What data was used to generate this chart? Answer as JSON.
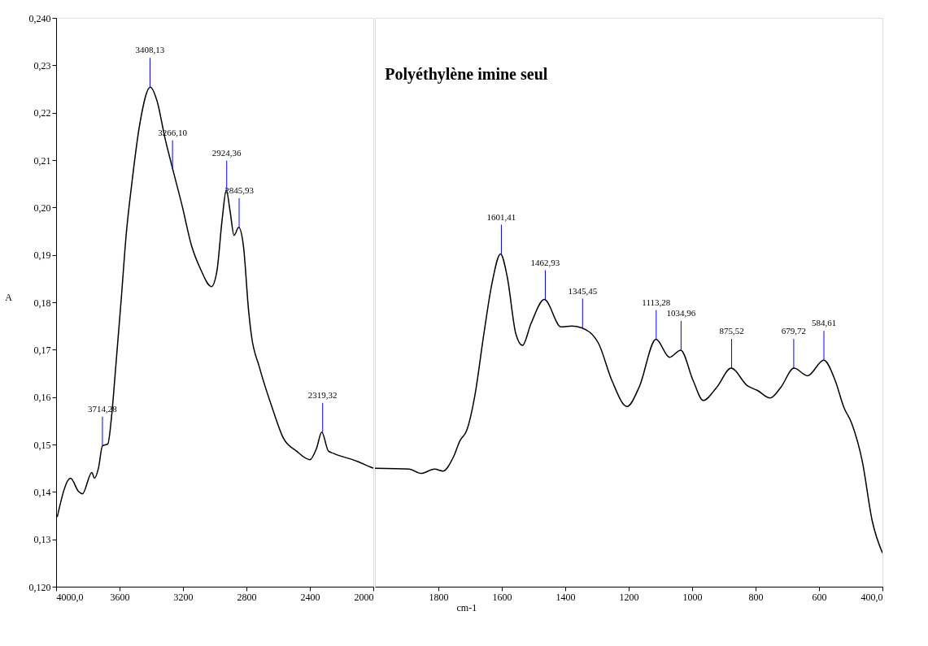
{
  "chart_data": [
    {
      "type": "line",
      "ylabel": "A",
      "xlim": [
        4000,
        2000
      ],
      "xticks": [
        {
          "value": 4000,
          "label": "4000,0"
        },
        3600,
        3200,
        2800,
        2400,
        2000
      ],
      "ylim": [
        0.12,
        0.24
      ],
      "yticks": [
        {
          "value": 0.12,
          "label": "0,120"
        },
        {
          "value": 0.13,
          "label": "0,13"
        },
        {
          "value": 0.14,
          "label": "0,14"
        },
        {
          "value": 0.15,
          "label": "0,15"
        },
        {
          "value": 0.16,
          "label": "0,16"
        },
        {
          "value": 0.17,
          "label": "0,17"
        },
        {
          "value": 0.18,
          "label": "0,18"
        },
        {
          "value": 0.19,
          "label": "0,19"
        },
        {
          "value": 0.2,
          "label": "0,20"
        },
        {
          "value": 0.21,
          "label": "0,21"
        },
        {
          "value": 0.22,
          "label": "0,22"
        },
        {
          "value": 0.23,
          "label": "0,23"
        },
        {
          "value": 0.24,
          "label": "0,240"
        }
      ],
      "x": [
        3993,
        3909,
        3859,
        3834,
        3775,
        3758,
        3733,
        3708,
        3674,
        3649,
        3624,
        3591,
        3557,
        3524,
        3473,
        3406,
        3364,
        3314,
        3264,
        3205,
        3146,
        3088,
        3021,
        2987,
        2953,
        2927,
        2903,
        2878,
        2849,
        2819,
        2786,
        2769,
        2719,
        2635,
        2568,
        2484,
        2400,
        2358,
        2325,
        2283,
        2249,
        2098,
        2015,
        2000
      ],
      "series": [
        {
          "color": "#000000",
          "values": [
            0.1347,
            0.1429,
            0.1401,
            0.1396,
            0.1441,
            0.1429,
            0.145,
            0.1497,
            0.1501,
            0.1564,
            0.1664,
            0.18,
            0.1947,
            0.2047,
            0.2175,
            0.2254,
            0.2225,
            0.2147,
            0.208,
            0.2003,
            0.1919,
            0.1869,
            0.1833,
            0.1864,
            0.1975,
            0.2037,
            0.1992,
            0.1941,
            0.1958,
            0.1919,
            0.1781,
            0.1731,
            0.1664,
            0.1575,
            0.1514,
            0.1486,
            0.1468,
            0.1492,
            0.1526,
            0.1486,
            0.1481,
            0.1464,
            0.1452,
            0.145
          ]
        }
      ],
      "annotations": [
        {
          "text": "3714,28",
          "x": 3708,
          "y": 0.1497
        },
        {
          "text": "3408,13",
          "x": 3408.13,
          "y": 0.2254
        },
        {
          "text": "3266,10",
          "x": 3266.1,
          "y": 0.208
        },
        {
          "text": "2924,36",
          "x": 2924.36,
          "y": 0.2037
        },
        {
          "text": "2845,93",
          "x": 2845.93,
          "y": 0.1958
        },
        {
          "text": "2319,32",
          "x": 2319.32,
          "y": 0.1526
        }
      ]
    },
    {
      "type": "line",
      "title": "Polyéthylène imine seul",
      "xlabel": "cm-1",
      "tick_labels": "x",
      "xlim": [
        2000,
        400
      ],
      "xticks": [
        1800,
        1600,
        1400,
        1200,
        1000,
        800,
        600,
        {
          "value": 400,
          "label": "400,0"
        }
      ],
      "ylim": [
        0.12,
        0.24
      ],
      "x": [
        2000,
        1892,
        1855,
        1812,
        1786,
        1753,
        1732,
        1711,
        1684,
        1658,
        1631,
        1604,
        1583,
        1556,
        1535,
        1508,
        1466,
        1413,
        1380,
        1348,
        1295,
        1253,
        1205,
        1167,
        1114,
        1071,
        1036,
        997,
        965,
        922,
        877,
        826,
        794,
        754,
        720,
        679,
        636,
        585,
        549,
        522,
        496,
        464,
        432,
        400
      ],
      "series": [
        {
          "color": "#000000",
          "values": [
            0.145,
            0.1448,
            0.1439,
            0.1448,
            0.1444,
            0.1473,
            0.1508,
            0.1529,
            0.1607,
            0.1727,
            0.184,
            0.1902,
            0.1854,
            0.1734,
            0.1709,
            0.1755,
            0.1806,
            0.1748,
            0.175,
            0.1746,
            0.1713,
            0.1635,
            0.158,
            0.1621,
            0.1722,
            0.1684,
            0.1699,
            0.1635,
            0.1593,
            0.1621,
            0.1661,
            0.1624,
            0.1614,
            0.1598,
            0.1621,
            0.1661,
            0.1645,
            0.1678,
            0.1635,
            0.1579,
            0.1543,
            0.1466,
            0.1338,
            0.1271
          ]
        }
      ],
      "annotations": [
        {
          "text": "1601,41",
          "x": 1601.41,
          "y": 0.1902
        },
        {
          "text": "1462,93",
          "x": 1462.93,
          "y": 0.1806
        },
        {
          "text": "1345,45",
          "x": 1345.45,
          "y": 0.1746
        },
        {
          "text": "1113,28",
          "x": 1113.28,
          "y": 0.1722
        },
        {
          "text": "1034,96",
          "x": 1034.96,
          "y": 0.1699
        },
        {
          "text": "875,52",
          "x": 875.52,
          "y": 0.1661
        },
        {
          "text": "679,72",
          "x": 679.72,
          "y": 0.1661
        },
        {
          "text": "584,61",
          "x": 584.61,
          "y": 0.1678
        }
      ]
    }
  ]
}
